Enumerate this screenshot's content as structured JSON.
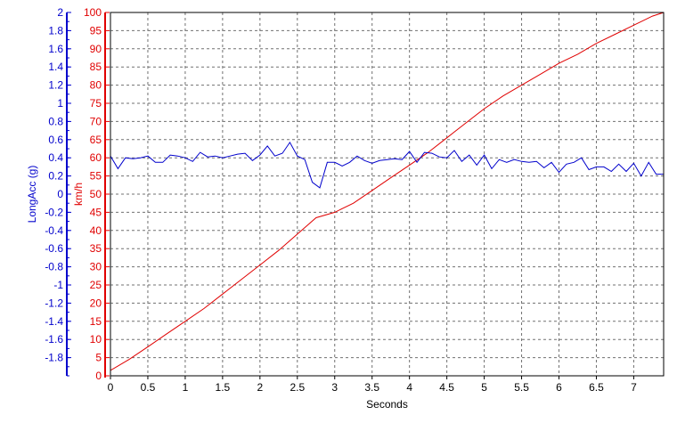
{
  "chart_data": {
    "type": "line",
    "xlabel": "Seconds",
    "xlim": [
      0,
      7.4
    ],
    "x_ticks": [
      "0",
      "0.5",
      "1",
      "1.5",
      "2",
      "2.5",
      "3",
      "3.5",
      "4",
      "4.5",
      "5",
      "5.5",
      "6",
      "6.5",
      "7"
    ],
    "grid": true,
    "axes": [
      {
        "id": "speed",
        "label": "km/h",
        "color": "#e00000",
        "ylim": [
          0,
          100
        ],
        "ticks": [
          "0",
          "5",
          "10",
          "15",
          "20",
          "25",
          "30",
          "35",
          "40",
          "45",
          "50",
          "55",
          "60",
          "65",
          "70",
          "75",
          "80",
          "85",
          "90",
          "95",
          "100"
        ]
      },
      {
        "id": "acc",
        "label": "LongAcc (g)",
        "color": "#0000cc",
        "ylim": [
          -2,
          2
        ],
        "ticks": [
          "-1.8",
          "-1.6",
          "-1.4",
          "-1.2",
          "-1",
          "-0.8",
          "-0.6",
          "-0.4",
          "-0.2",
          "0",
          "0.2",
          "0.4",
          "0.6",
          "0.8",
          "1",
          "1.2",
          "1.4",
          "1.6",
          "1.8",
          "2"
        ]
      }
    ],
    "series": [
      {
        "axis": "speed",
        "color": "#e00000",
        "x": [
          0,
          0.25,
          0.5,
          0.75,
          1.0,
          1.25,
          1.5,
          1.75,
          2.0,
          2.25,
          2.5,
          2.75,
          3.0,
          3.25,
          3.5,
          3.75,
          4.0,
          4.25,
          4.5,
          4.75,
          5.0,
          5.25,
          5.5,
          5.75,
          6.0,
          6.25,
          6.5,
          6.75,
          7.0,
          7.25,
          7.4
        ],
        "y": [
          1.5,
          4.5,
          8.0,
          11.5,
          15.0,
          18.5,
          22.5,
          26.5,
          30.5,
          34.5,
          39.0,
          43.5,
          45.0,
          47.5,
          51.0,
          54.5,
          58.0,
          61.5,
          65.5,
          69.5,
          73.5,
          77.0,
          80.0,
          83.0,
          86.0,
          88.5,
          91.5,
          94.0,
          96.5,
          99.0,
          100.0
        ]
      },
      {
        "axis": "acc",
        "color": "#0000cc",
        "x": [
          0,
          0.1,
          0.2,
          0.3,
          0.4,
          0.5,
          0.6,
          0.7,
          0.8,
          0.9,
          1.0,
          1.1,
          1.2,
          1.3,
          1.4,
          1.5,
          1.6,
          1.7,
          1.8,
          1.9,
          2.0,
          2.1,
          2.2,
          2.3,
          2.4,
          2.5,
          2.6,
          2.7,
          2.8,
          2.9,
          3.0,
          3.1,
          3.2,
          3.3,
          3.4,
          3.5,
          3.6,
          3.7,
          3.8,
          3.9,
          4.0,
          4.1,
          4.2,
          4.3,
          4.4,
          4.5,
          4.6,
          4.7,
          4.8,
          4.9,
          5.0,
          5.1,
          5.2,
          5.3,
          5.4,
          5.5,
          5.6,
          5.7,
          5.8,
          5.9,
          6.0,
          6.1,
          6.2,
          6.3,
          6.4,
          6.5,
          6.6,
          6.7,
          6.8,
          6.9,
          7.0,
          7.1,
          7.2,
          7.3,
          7.4
        ],
        "y": [
          0.42,
          0.28,
          0.4,
          0.39,
          0.4,
          0.42,
          0.35,
          0.35,
          0.43,
          0.42,
          0.4,
          0.36,
          0.46,
          0.41,
          0.42,
          0.4,
          0.42,
          0.44,
          0.45,
          0.37,
          0.43,
          0.53,
          0.42,
          0.45,
          0.57,
          0.42,
          0.38,
          0.13,
          0.07,
          0.35,
          0.35,
          0.31,
          0.35,
          0.42,
          0.37,
          0.34,
          0.37,
          0.38,
          0.39,
          0.38,
          0.47,
          0.35,
          0.46,
          0.45,
          0.41,
          0.4,
          0.48,
          0.36,
          0.43,
          0.32,
          0.43,
          0.28,
          0.38,
          0.35,
          0.38,
          0.36,
          0.35,
          0.36,
          0.29,
          0.35,
          0.24,
          0.33,
          0.35,
          0.4,
          0.27,
          0.3,
          0.3,
          0.25,
          0.33,
          0.25,
          0.34,
          0.2,
          0.35,
          0.22,
          0.22
        ]
      }
    ]
  }
}
